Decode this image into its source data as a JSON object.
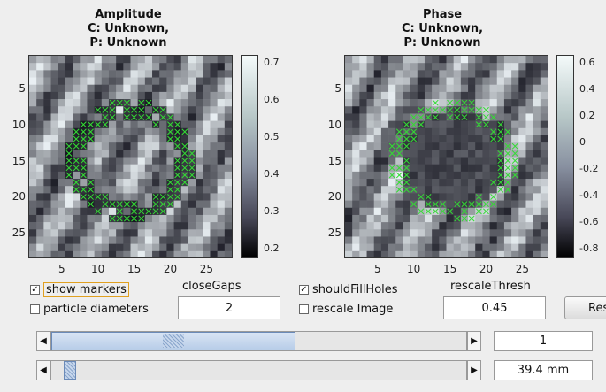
{
  "panels": [
    {
      "title_line1": "Amplitude",
      "title_line2": "C: Unknown,",
      "title_line3": "P: Unknown",
      "y_ticks": [
        "5",
        "10",
        "15",
        "20",
        "25"
      ],
      "x_ticks": [
        "5",
        "10",
        "15",
        "20",
        "25"
      ],
      "colorbar_ticks": [
        "0.7",
        "0.6",
        "0.5",
        "0.4",
        "0.3",
        "0.2"
      ],
      "colormap": "bone"
    },
    {
      "title_line1": "Phase",
      "title_line2": "C: Unknown,",
      "title_line3": "P: Unknown",
      "y_ticks": [
        "5",
        "10",
        "15",
        "20",
        "25"
      ],
      "x_ticks": [
        "5",
        "10",
        "15",
        "20",
        "25"
      ],
      "colorbar_ticks": [
        "0.6",
        "0.4",
        "0.2",
        "0",
        "-0.2",
        "-0.4",
        "-0.6",
        "-0.8"
      ],
      "colormap": "bone"
    }
  ],
  "controls": {
    "show_markers": {
      "label": "show markers",
      "checked": true
    },
    "particle_diameters": {
      "label": "particle diameters",
      "checked": false
    },
    "close_gaps_label": "closeGaps",
    "close_gaps_value": "2",
    "should_fill_holes": {
      "label": "shouldFillHoles",
      "checked": true
    },
    "rescale_image": {
      "label": "rescale Image",
      "checked": false
    },
    "rescale_thresh_label": "rescaleThresh",
    "rescale_thresh_value": "0.45",
    "reset_button_label": "Reset"
  },
  "sliders": [
    {
      "value_text": "1",
      "fraction": 0.5
    },
    {
      "value_text": "39.4 mm",
      "fraction": 0.03
    }
  ],
  "colors": {
    "marker": "#33dd33",
    "focus": "#e0a020",
    "slider_fill": "#b8cde8"
  },
  "icons": {
    "left_arrow": "left-arrow-icon",
    "right_arrow": "right-arrow-icon",
    "check": "check-icon"
  }
}
